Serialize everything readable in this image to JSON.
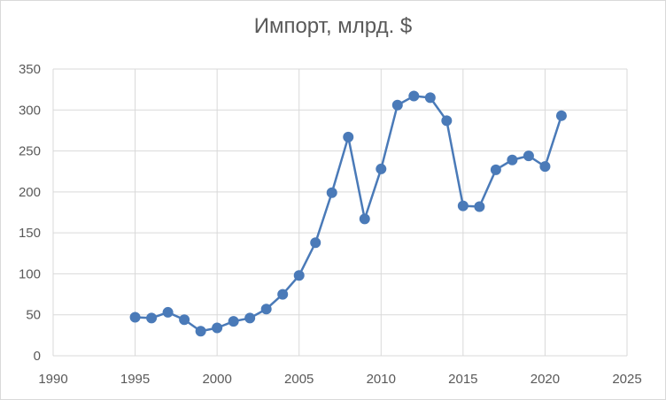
{
  "chart_data": {
    "type": "scatter",
    "title": "Импорт, млрд. $",
    "xlabel": "",
    "ylabel": "",
    "xlim": [
      1990,
      2025
    ],
    "ylim": [
      0,
      350
    ],
    "x_ticks": [
      "1990",
      "1995",
      "2000",
      "2005",
      "2010",
      "2015",
      "2020",
      "2025"
    ],
    "y_ticks": [
      "0",
      "50",
      "100",
      "150",
      "200",
      "250",
      "300",
      "350"
    ],
    "grid": true,
    "legend": "none",
    "line_color": "#4a7ab8",
    "series": [
      {
        "x": [
          1995,
          1996,
          1997,
          1998,
          1999,
          2000,
          2001,
          2002,
          2003,
          2004,
          2005,
          2006,
          2007,
          2008,
          2009,
          2010,
          2011,
          2012,
          2013,
          2014,
          2015,
          2016,
          2017,
          2018,
          2019,
          2020,
          2021
        ],
        "y": [
          47,
          46,
          53,
          44,
          30,
          34,
          42,
          46,
          57,
          75,
          98,
          138,
          199,
          267,
          167,
          228,
          306,
          317,
          315,
          287,
          183,
          182,
          227,
          239,
          244,
          231,
          293
        ]
      }
    ]
  }
}
